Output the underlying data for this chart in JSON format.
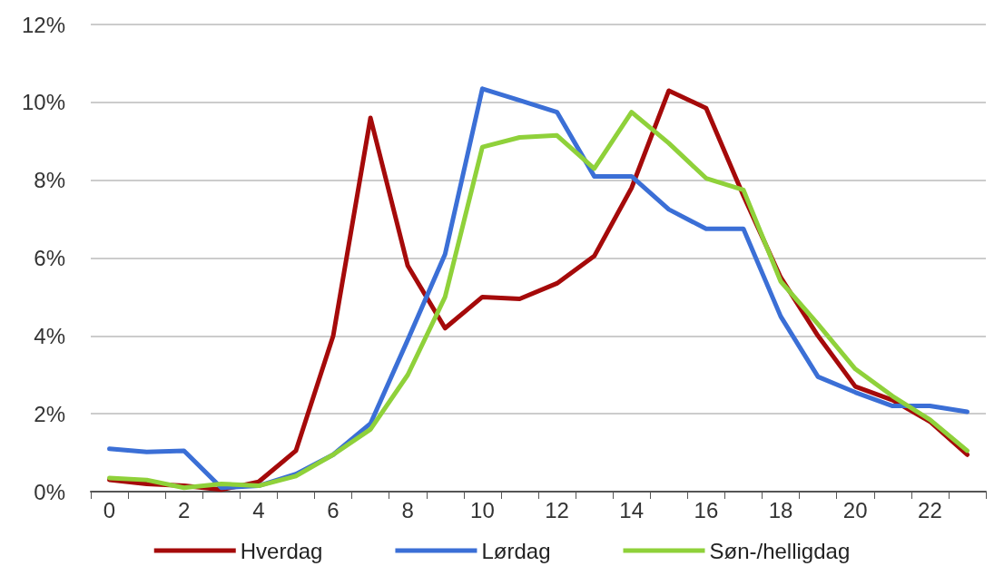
{
  "chart_data": {
    "type": "line",
    "categories": [
      "0",
      null,
      "2",
      null,
      "4",
      null,
      "6",
      null,
      "8",
      null,
      "10",
      null,
      "12",
      null,
      "14",
      null,
      "16",
      null,
      "18",
      null,
      "20",
      null,
      "22",
      null
    ],
    "series": [
      {
        "name": "Hverdag",
        "color": "#a50a0a",
        "values": [
          0.3,
          0.2,
          0.15,
          0.05,
          0.25,
          1.05,
          4.0,
          9.6,
          5.8,
          4.2,
          5.0,
          4.95,
          5.35,
          6.05,
          7.8,
          10.3,
          9.85,
          7.6,
          5.5,
          4.0,
          2.7,
          2.35,
          1.8,
          0.95
        ]
      },
      {
        "name": "Lørdag",
        "color": "#3b6fd6",
        "values": [
          1.1,
          1.02,
          1.05,
          0.1,
          0.15,
          0.45,
          0.95,
          1.75,
          3.9,
          6.1,
          10.35,
          10.05,
          9.75,
          8.1,
          8.1,
          7.25,
          6.75,
          6.75,
          4.5,
          2.95,
          2.55,
          2.2,
          2.2,
          2.05
        ]
      },
      {
        "name": "Søn-/helligdag",
        "color": "#8fd13a",
        "values": [
          0.35,
          0.3,
          0.1,
          0.2,
          0.15,
          0.4,
          0.95,
          1.6,
          3.0,
          5.0,
          8.85,
          9.1,
          9.15,
          8.3,
          9.75,
          8.95,
          8.05,
          7.75,
          5.4,
          4.3,
          3.15,
          2.45,
          1.85,
          1.05
        ]
      }
    ],
    "ylim": [
      0,
      12
    ],
    "yticks": [
      {
        "value": 0,
        "label": "0%"
      },
      {
        "value": 2,
        "label": "2%"
      },
      {
        "value": 4,
        "label": "4%"
      },
      {
        "value": 6,
        "label": "6%"
      },
      {
        "value": 8,
        "label": "8%"
      },
      {
        "value": 10,
        "label": "10%"
      },
      {
        "value": 12,
        "label": "12%"
      }
    ],
    "grid": "y",
    "legend": "bottom",
    "marker": "none",
    "line_style": "solid"
  }
}
